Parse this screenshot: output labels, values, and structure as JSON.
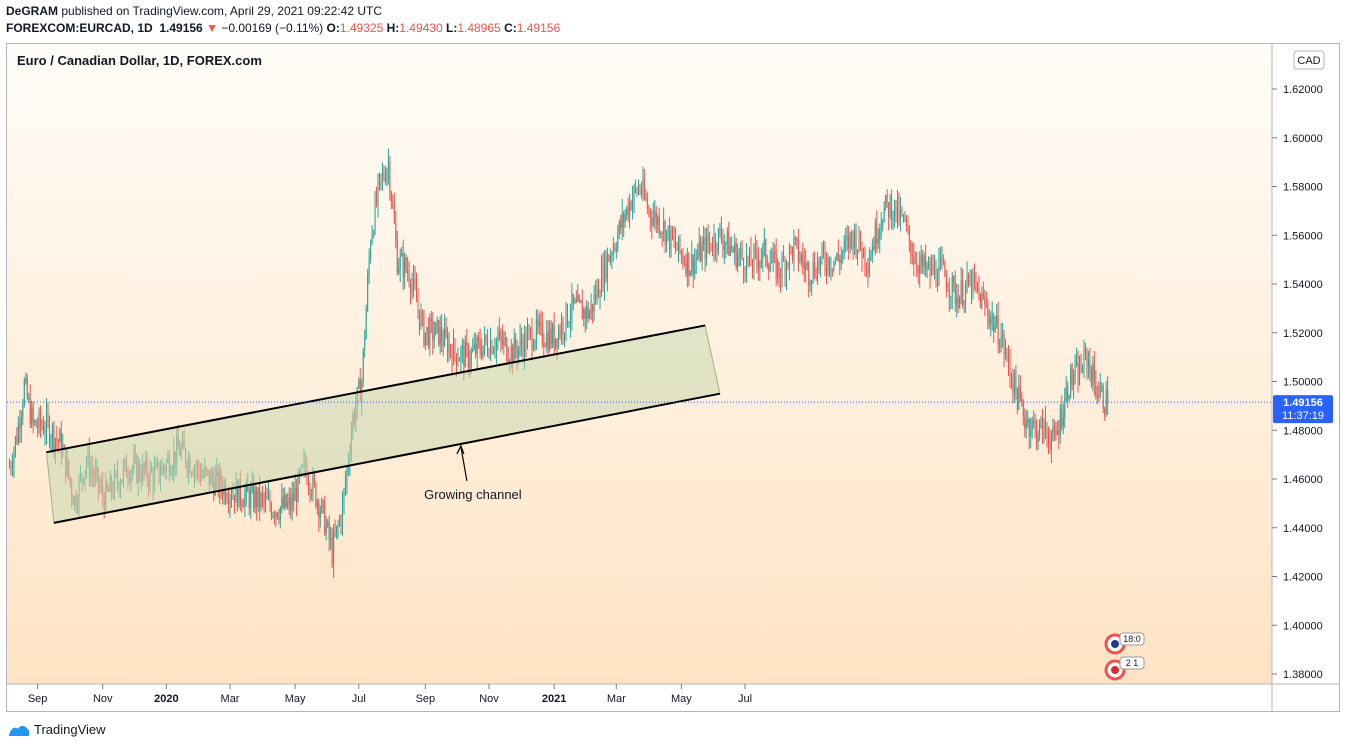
{
  "header": {
    "publisher": "DeGRAM",
    "published_text": "published on TradingView.com, April 29, 2021 09:22:42 UTC",
    "symbol": "FOREXCOM:EURCAD, 1D",
    "last_price": "1.49156",
    "change": "−0.00169 (−0.11%)",
    "o_label": "O:",
    "o_value": "1.49325",
    "h_label": "H:",
    "h_value": "1.49430",
    "l_label": "L:",
    "l_value": "1.48965",
    "c_label": "C:",
    "c_value": "1.49156"
  },
  "pane": {
    "title": "Euro / Canadian Dollar, 1D, FOREX.com",
    "currency_label": "CAD",
    "price_tag": "1.49156",
    "countdown": "11:37:19",
    "event_badge_1": "18:0",
    "event_badge_2": "2 1"
  },
  "footer": {
    "brand": "TradingView"
  },
  "colors": {
    "up": "#26a69a",
    "down": "#ef5350",
    "channel_fill": "#c8d8b0",
    "bg_top": "#fffdf8",
    "bg_bottom": "#ffe3c4",
    "tag": "#2962ff"
  },
  "chart_data": {
    "type": "candlestick",
    "title": "Euro / Canadian Dollar, 1D, FOREX.com",
    "ylim": [
      1.37,
      1.63
    ],
    "y_ticks": [
      "1.62000",
      "1.60000",
      "1.58000",
      "1.56000",
      "1.54000",
      "1.52000",
      "1.50000",
      "1.48000",
      "1.46000",
      "1.44000",
      "1.42000",
      "1.40000",
      "1.38000"
    ],
    "x_ticks": [
      "Sep",
      "Nov",
      "2020",
      "Mar",
      "May",
      "Jul",
      "Sep",
      "Nov",
      "2021",
      "Mar",
      "May",
      "Jul"
    ],
    "x_ticks_bold": [
      false,
      false,
      true,
      false,
      false,
      false,
      false,
      false,
      true,
      false,
      false,
      false
    ],
    "current_price": 1.49156,
    "anchors": [
      [
        0,
        1.465
      ],
      [
        5,
        1.478
      ],
      [
        10,
        1.498
      ],
      [
        16,
        1.482
      ],
      [
        25,
        1.482
      ],
      [
        35,
        1.474
      ],
      [
        44,
        1.451
      ],
      [
        52,
        1.468
      ],
      [
        64,
        1.452
      ],
      [
        80,
        1.465
      ],
      [
        98,
        1.461
      ],
      [
        115,
        1.472
      ],
      [
        130,
        1.462
      ],
      [
        150,
        1.455
      ],
      [
        165,
        1.452
      ],
      [
        180,
        1.448
      ],
      [
        190,
        1.449
      ],
      [
        200,
        1.465
      ],
      [
        212,
        1.445
      ],
      [
        218,
        1.43
      ],
      [
        225,
        1.448
      ],
      [
        232,
        1.485
      ],
      [
        238,
        1.5
      ],
      [
        244,
        1.56
      ],
      [
        250,
        1.58
      ],
      [
        256,
        1.59
      ],
      [
        262,
        1.55
      ],
      [
        270,
        1.545
      ],
      [
        280,
        1.52
      ],
      [
        290,
        1.52
      ],
      [
        300,
        1.512
      ],
      [
        310,
        1.51
      ],
      [
        320,
        1.515
      ],
      [
        330,
        1.517
      ],
      [
        340,
        1.512
      ],
      [
        355,
        1.52
      ],
      [
        368,
        1.518
      ],
      [
        380,
        1.53
      ],
      [
        392,
        1.528
      ],
      [
        404,
        1.55
      ],
      [
        412,
        1.562
      ],
      [
        420,
        1.575
      ],
      [
        426,
        1.58
      ],
      [
        432,
        1.57
      ],
      [
        440,
        1.565
      ],
      [
        450,
        1.555
      ],
      [
        460,
        1.548
      ],
      [
        470,
        1.555
      ],
      [
        480,
        1.56
      ],
      [
        490,
        1.553
      ],
      [
        500,
        1.548
      ],
      [
        510,
        1.553
      ],
      [
        520,
        1.545
      ],
      [
        530,
        1.555
      ],
      [
        540,
        1.545
      ],
      [
        550,
        1.55
      ],
      [
        560,
        1.55
      ],
      [
        570,
        1.56
      ],
      [
        580,
        1.55
      ],
      [
        590,
        1.57
      ],
      [
        596,
        1.572
      ],
      [
        604,
        1.565
      ],
      [
        612,
        1.55
      ],
      [
        620,
        1.545
      ],
      [
        630,
        1.545
      ],
      [
        640,
        1.535
      ],
      [
        650,
        1.54
      ],
      [
        660,
        1.53
      ],
      [
        670,
        1.518
      ],
      [
        678,
        1.5
      ],
      [
        686,
        1.485
      ],
      [
        694,
        1.48
      ],
      [
        700,
        1.48
      ],
      [
        706,
        1.475
      ],
      [
        710,
        1.485
      ],
      [
        716,
        1.5
      ],
      [
        722,
        1.503
      ],
      [
        728,
        1.51
      ],
      [
        734,
        1.498
      ],
      [
        740,
        1.492
      ],
      [
        742,
        1.4916
      ]
    ],
    "channel": {
      "label": "Growing channel",
      "upper_line": [
        [
          "2019-09-09",
          1.471
        ],
        [
          "2021-05-24",
          1.523
        ]
      ],
      "lower_line": [
        [
          "2019-09-16",
          1.442
        ],
        [
          "2021-06-07",
          1.495
        ]
      ]
    }
  }
}
